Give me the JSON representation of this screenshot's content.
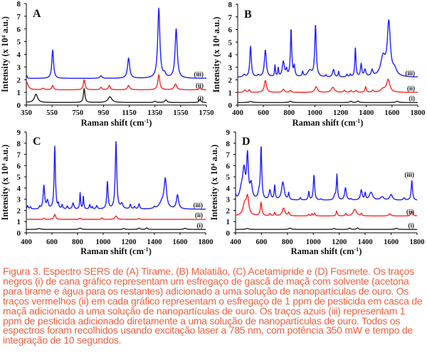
{
  "caption": "Figura 3. Espectro SERS de (A) Tirame, (B) Malatião, (C) Acetamipride e (D) Fosmete. Os traços negros (i) de cana gráfico representam um esfregaço de gascã de maçã com solvente (acetona para tirame e água para os restantes) adicionado a uma solução de nanopartículas de ouro. Os traços vermelhos (ii) em cada gráfico representam o esfregaço de 1 ppm de pesticida em casca de maçã adicionado a uma solução de nanopartículas de ouro. Os traços azuis (iii) representam 1 ppm de pesticida adicionado diretamente a uma solução de nanopartículas de ouro. Todos os espectros foram recolhidos usando excitação laser a 785 nm, com potência 350 mW e tempo de integração de 10 segundos.",
  "colors": {
    "i": "#222222",
    "ii": "#ff2626",
    "iii": "#1f1fff",
    "caption": "#f0603f"
  },
  "chart_data": [
    {
      "type": "line",
      "panel": "A",
      "xlabel": "Raman shift (cm-1)",
      "ylabel": "Intensity (x 10⁴ a.u.)",
      "xlim": [
        350,
        1750
      ],
      "ylim": [
        0,
        8
      ],
      "xticks": [
        "350",
        "550",
        "750",
        "950",
        "1150",
        "1350",
        "1550",
        "1750"
      ],
      "yticks": [
        "0",
        "1",
        "2",
        "3",
        "4",
        "5",
        "6",
        "7",
        "8"
      ],
      "series": [
        {
          "name": "(i)",
          "baseline": 0.2,
          "peaks": [
            [
              425,
              0.65,
              15
            ],
            [
              800,
              1.1,
              7
            ],
            [
              1000,
              0.45,
              18
            ],
            [
              1350,
              0.1,
              10
            ],
            [
              1435,
              0.2,
              10
            ],
            [
              1700,
              0.25,
              8
            ]
          ]
        },
        {
          "name": "(ii)",
          "baseline": 1.2,
          "peaks": [
            [
              350,
              0.65,
              15
            ],
            [
              480,
              0.12,
              10
            ],
            [
              555,
              0.35,
              8
            ],
            [
              800,
              0.8,
              8
            ],
            [
              930,
              0.2,
              8
            ],
            [
              995,
              0.35,
              8
            ],
            [
              1145,
              0.35,
              10
            ],
            [
              1380,
              1.2,
              9
            ],
            [
              1510,
              0.45,
              12
            ],
            [
              1700,
              0.15,
              8
            ]
          ]
        },
        {
          "name": "(iii)",
          "baseline": 2.1,
          "peaks": [
            [
              352,
              0.25,
              5
            ],
            [
              555,
              2.25,
              8
            ],
            [
              930,
              0.2,
              10
            ],
            [
              1145,
              1.6,
              10
            ],
            [
              1380,
              5.5,
              10
            ],
            [
              1425,
              0.3,
              10
            ],
            [
              1515,
              3.9,
              10
            ]
          ]
        }
      ]
    },
    {
      "type": "line",
      "panel": "B",
      "xlabel": "Raman shift (cm-1)",
      "ylabel": "Intensity (x 10⁴ a.u.)",
      "xlim": [
        400,
        1800
      ],
      "ylim": [
        0,
        8
      ],
      "xticks": [
        "400",
        "600",
        "800",
        "1000",
        "1200",
        "1400",
        "1600",
        "1800"
      ],
      "yticks": [
        "0",
        "1",
        "2",
        "3",
        "4",
        "5",
        "6",
        "7",
        "8"
      ],
      "series": [
        {
          "name": "(i)",
          "baseline": 0.2,
          "peaks": [
            [
              500,
              0.08,
              15
            ],
            [
              810,
              0.1,
              12
            ],
            [
              1280,
              0.1,
              10
            ],
            [
              1335,
              0.12,
              8
            ],
            [
              1640,
              0.1,
              12
            ]
          ]
        },
        {
          "name": "(ii)",
          "baseline": 1.0,
          "peaks": [
            [
              455,
              0.2,
              10
            ],
            [
              490,
              0.2,
              6
            ],
            [
              615,
              0.95,
              10
            ],
            [
              755,
              0.25,
              10
            ],
            [
              810,
              0.15,
              8
            ],
            [
              1010,
              0.45,
              12
            ],
            [
              1140,
              0.4,
              15
            ],
            [
              1230,
              0.15,
              8
            ],
            [
              1280,
              0.15,
              6
            ],
            [
              1320,
              0.15,
              8
            ],
            [
              1395,
              0.45,
              6
            ],
            [
              1450,
              0.15,
              8
            ],
            [
              1530,
              0.25,
              20
            ],
            [
              1570,
              1.0,
              15
            ]
          ]
        },
        {
          "name": "(iii)",
          "baseline": 2.2,
          "peaks": [
            [
              450,
              0.2,
              10
            ],
            [
              500,
              2.45,
              7
            ],
            [
              560,
              0.15,
              8
            ],
            [
              615,
              2.15,
              9
            ],
            [
              690,
              0.9,
              4
            ],
            [
              715,
              0.7,
              4
            ],
            [
              755,
              1.2,
              10
            ],
            [
              780,
              0.5,
              6
            ],
            [
              815,
              3.75,
              6
            ],
            [
              840,
              0.8,
              6
            ],
            [
              905,
              0.4,
              5
            ],
            [
              960,
              0.5,
              20
            ],
            [
              1005,
              4.1,
              7
            ],
            [
              1085,
              0.15,
              5
            ],
            [
              1145,
              0.6,
              8
            ],
            [
              1185,
              0.45,
              4
            ],
            [
              1250,
              0.2,
              5
            ],
            [
              1275,
              0.2,
              5
            ],
            [
              1315,
              2.35,
              5
            ],
            [
              1360,
              1.0,
              6
            ],
            [
              1390,
              0.55,
              8
            ],
            [
              1445,
              0.5,
              8
            ],
            [
              1530,
              1.5,
              22
            ],
            [
              1575,
              4.2,
              14
            ],
            [
              1620,
              0.5,
              20
            ]
          ]
        }
      ]
    },
    {
      "type": "line",
      "panel": "C",
      "xlabel": "Raman shift (cm-1)",
      "ylabel": "Intensity (x 10⁴ a.u.)",
      "xlim": [
        400,
        1800
      ],
      "ylim": [
        0,
        9
      ],
      "xticks": [
        "400",
        "600",
        "800",
        "1000",
        "1200",
        "1400",
        "1600",
        "1800"
      ],
      "yticks": [
        "0",
        "1",
        "2",
        "3",
        "4",
        "5",
        "6",
        "7",
        "8",
        "9"
      ],
      "series": [
        {
          "name": "(i)",
          "baseline": 0.3,
          "peaks": [
            [
              500,
              0.08,
              15
            ],
            [
              820,
              0.12,
              12
            ],
            [
              1160,
              0.08,
              10
            ],
            [
              1280,
              0.12,
              8
            ],
            [
              1340,
              0.14,
              8
            ],
            [
              1640,
              0.1,
              12
            ]
          ]
        },
        {
          "name": "(ii)",
          "baseline": 1.2,
          "peaks": [
            [
              540,
              0.1,
              6
            ],
            [
              622,
              0.45,
              8
            ],
            [
              820,
              0.1,
              6
            ],
            [
              990,
              0.15,
              5
            ],
            [
              1100,
              0.3,
              10
            ],
            [
              1280,
              0.06,
              8
            ]
          ]
        },
        {
          "name": "(iii)",
          "baseline": 2.1,
          "peaks": [
            [
              410,
              0.3,
              6
            ],
            [
              432,
              0.2,
              5
            ],
            [
              505,
              0.2,
              5
            ],
            [
              537,
              2.1,
              7
            ],
            [
              565,
              0.7,
              8
            ],
            [
              622,
              5.6,
              6
            ],
            [
              650,
              0.4,
              4
            ],
            [
              680,
              0.35,
              5
            ],
            [
              720,
              0.25,
              5
            ],
            [
              765,
              0.55,
              7
            ],
            [
              820,
              1.45,
              4
            ],
            [
              845,
              1.15,
              4
            ],
            [
              895,
              0.4,
              5
            ],
            [
              915,
              0.2,
              4
            ],
            [
              950,
              0.3,
              6
            ],
            [
              1033,
              2.45,
              6
            ],
            [
              1100,
              6.0,
              7
            ],
            [
              1145,
              0.45,
              10
            ],
            [
              1212,
              0.4,
              6
            ],
            [
              1245,
              0.2,
              6
            ],
            [
              1280,
              0.45,
              6
            ],
            [
              1400,
              0.15,
              6
            ],
            [
              1460,
              0.6,
              25
            ],
            [
              1485,
              2.5,
              11
            ],
            [
              1580,
              1.25,
              10
            ]
          ]
        }
      ]
    },
    {
      "type": "line",
      "panel": "D",
      "xlabel": "Raman shift (cm-1)",
      "ylabel": "Intensity (x 10⁴ a.u.)",
      "xlim": [
        400,
        1800
      ],
      "ylim": [
        0,
        9
      ],
      "xticks": [
        "400",
        "600",
        "800",
        "1000",
        "1200",
        "1400",
        "1600",
        "1800"
      ],
      "yticks": [
        "0",
        "1",
        "2",
        "3",
        "4",
        "5",
        "6",
        "7",
        "8",
        "9"
      ],
      "series": [
        {
          "name": "(i)",
          "baseline": 0.3,
          "peaks": [
            [
              490,
              0.08,
              15
            ],
            [
              820,
              0.12,
              12
            ],
            [
              1160,
              0.08,
              10
            ],
            [
              1280,
              0.12,
              8
            ],
            [
              1340,
              0.14,
              8
            ],
            [
              1640,
              0.1,
              12
            ]
          ]
        },
        {
          "name": "(ii)",
          "baseline": 1.5,
          "peaks": [
            [
              470,
              1.0,
              15
            ],
            [
              492,
              1.6,
              12
            ],
            [
              597,
              1.2,
              7
            ],
            [
              665,
              0.2,
              6
            ],
            [
              702,
              0.3,
              5
            ],
            [
              770,
              0.7,
              12
            ],
            [
              810,
              0.3,
              6
            ],
            [
              965,
              0.15,
              5
            ],
            [
              990,
              0.2,
              4
            ],
            [
              1010,
              0.25,
              6
            ],
            [
              1180,
              0.45,
              5
            ],
            [
              1250,
              0.2,
              6
            ],
            [
              1320,
              0.6,
              15
            ],
            [
              1370,
              0.2,
              6
            ],
            [
              1590,
              0.2,
              10
            ],
            [
              1760,
              0.4,
              8
            ]
          ]
        },
        {
          "name": "(iii)",
          "baseline": 2.9,
          "peaks": [
            [
              400,
              0.4,
              6
            ],
            [
              445,
              0.8,
              15
            ],
            [
              465,
              2.5,
              12
            ],
            [
              492,
              3.8,
              8
            ],
            [
              520,
              1.3,
              10
            ],
            [
              580,
              0.5,
              8
            ],
            [
              597,
              4.7,
              6
            ],
            [
              665,
              0.85,
              8
            ],
            [
              702,
              1.25,
              5
            ],
            [
              765,
              1.6,
              12
            ],
            [
              810,
              0.6,
              5
            ],
            [
              900,
              0.2,
              6
            ],
            [
              965,
              0.75,
              5
            ],
            [
              1005,
              2.25,
              6
            ],
            [
              1060,
              0.1,
              6
            ],
            [
              1165,
              0.4,
              8
            ],
            [
              1182,
              2.25,
              5
            ],
            [
              1248,
              1.1,
              8
            ],
            [
              1290,
              0.1,
              6
            ],
            [
              1370,
              0.9,
              8
            ],
            [
              1400,
              0.6,
              5
            ],
            [
              1445,
              0.7,
              15
            ],
            [
              1530,
              0.3,
              15
            ],
            [
              1600,
              0.5,
              12
            ],
            [
              1700,
              0.2,
              8
            ],
            [
              1760,
              1.75,
              6
            ]
          ]
        }
      ]
    }
  ]
}
